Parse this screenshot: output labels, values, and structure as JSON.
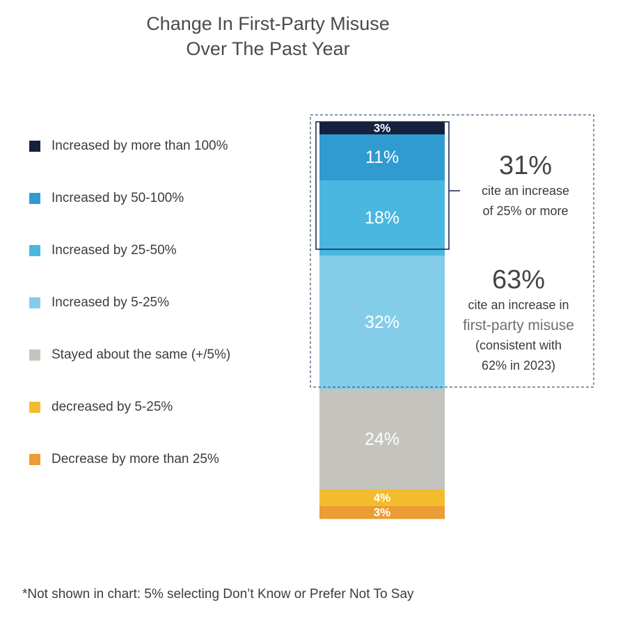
{
  "chart_data": {
    "type": "bar",
    "orientation": "stacked-vertical",
    "title": [
      "Change In First-Party Misuse",
      "Over The Past Year"
    ],
    "categories": [
      "Increased by more than 100%",
      "Increased by 50-100%",
      "Increased by 25-50%",
      "Increased by 5-25%",
      "Stayed about the same (+/5%)",
      "decreased by 5-25%",
      "Decrease by more than 25%"
    ],
    "series": [
      {
        "label": "Increased by more than 100%",
        "value": 3,
        "display": "3%",
        "color": "#15213d"
      },
      {
        "label": "Increased by 50-100%",
        "value": 11,
        "display": "11%",
        "color": "#2f9bd1"
      },
      {
        "label": "Increased by 25-50%",
        "value": 18,
        "display": "18%",
        "color": "#49b7e0"
      },
      {
        "label": "Increased by 5-25%",
        "value": 32,
        "display": "32%",
        "color": "#84cde9"
      },
      {
        "label": "Stayed about the same (+/5%)",
        "value": 24,
        "display": "24%",
        "color": "#c4c3be"
      },
      {
        "label": "decreased by 5-25%",
        "value": 4,
        "display": "4%",
        "color": "#f3bc2e"
      },
      {
        "label": "Decrease by more than 25%",
        "value": 3,
        "display": "3%",
        "color": "#eb9c34"
      }
    ],
    "legend_position": "left",
    "grid": false,
    "annotations": [
      {
        "big": "31%",
        "lines": [
          "cite an increase",
          "of 25% or more"
        ]
      },
      {
        "big": "63%",
        "lines": [
          "cite an increase in",
          "first-party misuse",
          "(consistent with",
          "62% in 2023)"
        ]
      }
    ],
    "footnote": "*Not shown in chart:  5% selecting Don’t Know or Prefer Not To Say"
  }
}
